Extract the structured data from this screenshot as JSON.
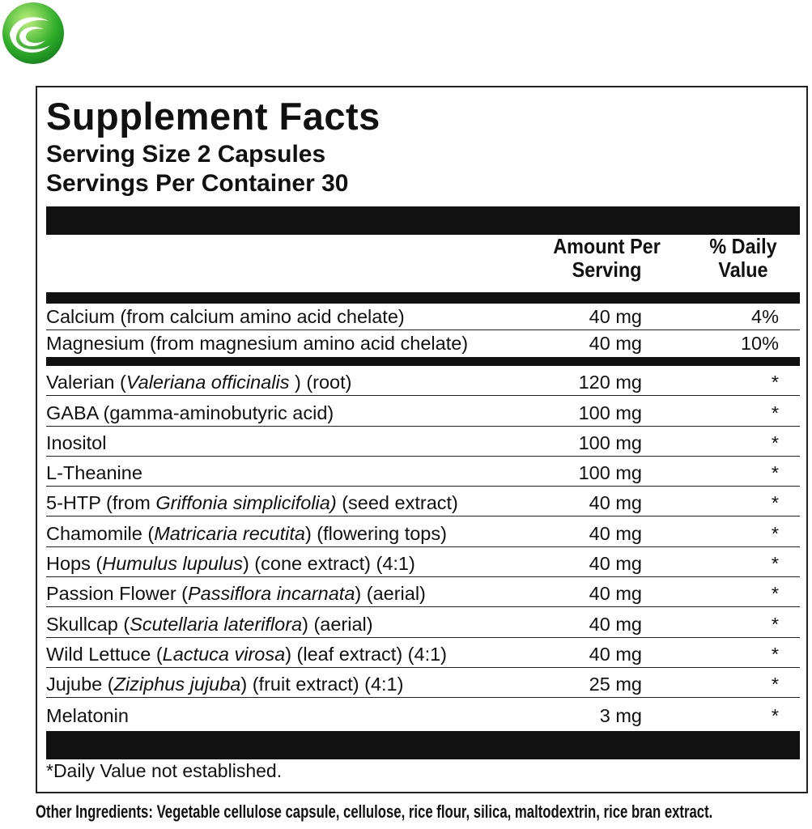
{
  "title": "Supplement Facts",
  "serving_size": "Serving Size 2 Capsules",
  "servings_per_container": "Servings Per Container 30",
  "columns": {
    "amount": "Amount Per Serving",
    "daily_value": "% Daily Value"
  },
  "sections": [
    [
      {
        "name": [
          "Calcium (from calcium amino acid chelate)"
        ],
        "amount": "40 mg",
        "daily_value": "4%"
      },
      {
        "name": [
          "Magnesium (from magnesium amino acid chelate)"
        ],
        "amount": "40 mg",
        "daily_value": "10%"
      }
    ],
    [
      {
        "name": [
          "Valerian (",
          "Valeriana officinalis",
          " ) (root)"
        ],
        "amount": "120 mg",
        "daily_value": "*"
      },
      {
        "name": [
          "GABA (gamma-aminobutyric acid)"
        ],
        "amount": "100 mg",
        "daily_value": "*"
      },
      {
        "name": [
          "Inositol"
        ],
        "amount": "100 mg",
        "daily_value": "*"
      },
      {
        "name": [
          "L-Theanine"
        ],
        "amount": "100 mg",
        "daily_value": "*"
      },
      {
        "name": [
          "5-HTP (from ",
          "Griffonia simplicifolia)",
          " (seed extract)"
        ],
        "amount": "40 mg",
        "daily_value": "*"
      },
      {
        "name": [
          "Chamomile (",
          "Matricaria recutita",
          ") (flowering tops)"
        ],
        "amount": "40 mg",
        "daily_value": "*"
      },
      {
        "name": [
          "Hops (",
          "Humulus lupulus",
          ") (cone extract) (4:1)"
        ],
        "amount": "40 mg",
        "daily_value": "*"
      },
      {
        "name": [
          "Passion Flower (",
          "Passiflora incarnata",
          ") (aerial)"
        ],
        "amount": "40 mg",
        "daily_value": "*"
      },
      {
        "name": [
          "Skullcap (",
          "Scutellaria lateriflora",
          ") (aerial)"
        ],
        "amount": "40 mg",
        "daily_value": "*"
      },
      {
        "name": [
          "Wild Lettuce (",
          "Lactuca virosa",
          ") (leaf extract) (4:1)"
        ],
        "amount": "40 mg",
        "daily_value": "*"
      },
      {
        "name": [
          "Jujube (",
          "Ziziphus jujuba",
          ") (fruit extract) (4:1)"
        ],
        "amount": "25 mg",
        "daily_value": "*"
      },
      {
        "name": [
          "Melatonin"
        ],
        "amount": "3 mg",
        "daily_value": "*"
      }
    ]
  ],
  "footnote": "*Daily Value not established.",
  "other_ingredients": {
    "label": "Other Ingredients:",
    "text": "Vegetable cellulose capsule, cellulose, rice flour, silica, maltodextrin, rice bran extract."
  }
}
